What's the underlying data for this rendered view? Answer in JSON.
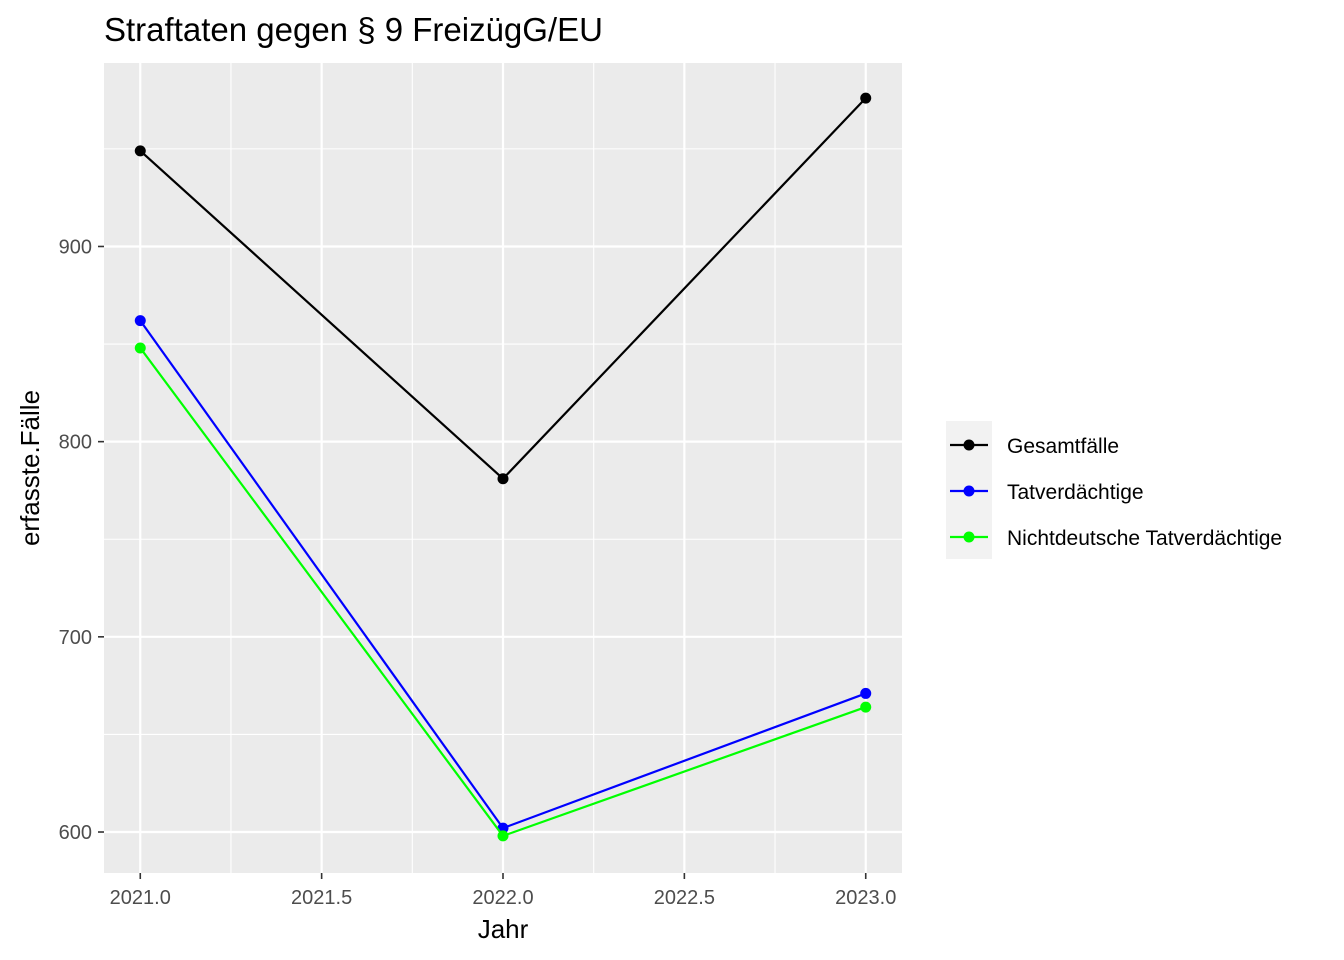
{
  "chart_data": {
    "type": "line",
    "title": "Straftaten gegen § 9 FreizügG/EU",
    "xlabel": "Jahr",
    "ylabel": "erfasste.Fälle",
    "x": [
      2021,
      2022,
      2023
    ],
    "xlim": [
      2020.9,
      2023.1
    ],
    "ylim": [
      579,
      994
    ],
    "x_ticks": [
      2021.0,
      2021.5,
      2022.0,
      2022.5,
      2023.0
    ],
    "x_tick_labels": [
      "2021.0",
      "2021.5",
      "2022.0",
      "2022.5",
      "2023.0"
    ],
    "y_ticks": [
      600,
      700,
      800,
      900
    ],
    "y_tick_labels": [
      "600",
      "700",
      "800",
      "900"
    ],
    "grid": true,
    "legend_position": "right",
    "series": [
      {
        "name": "Gesamtfälle",
        "color": "#000000",
        "values": [
          949,
          781,
          976
        ]
      },
      {
        "name": "Tatverdächtige",
        "color": "#0000ff",
        "values": [
          862,
          602,
          671
        ]
      },
      {
        "name": "Nichtdeutsche Tatverdächtige",
        "color": "#00ff00",
        "values": [
          848,
          598,
          664
        ]
      }
    ],
    "panel_background": "#ebebeb",
    "grid_color": "#ffffff"
  }
}
